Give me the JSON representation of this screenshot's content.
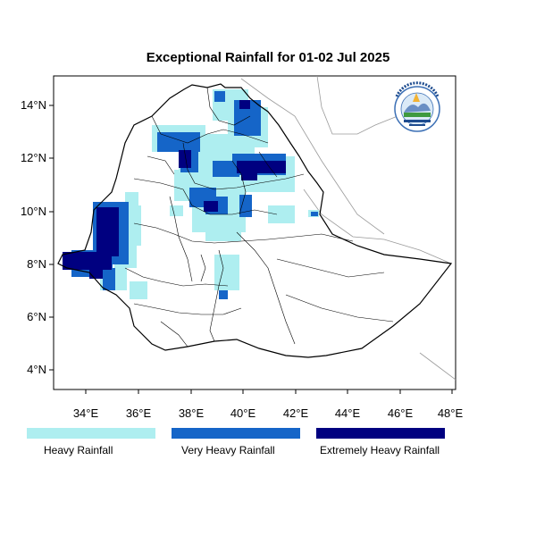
{
  "title": "Exceptional Rainfall for 01-02 Jul 2025",
  "axes": {
    "x_ticks": [
      "34°E",
      "36°E",
      "38°E",
      "40°E",
      "42°E",
      "44°E",
      "46°E",
      "48°E"
    ],
    "y_ticks": [
      "14°N",
      "12°N",
      "10°N",
      "8°N",
      "6°N",
      "4°N"
    ]
  },
  "legend": [
    {
      "label": "Heavy Rainfall",
      "color": "#aeeef0"
    },
    {
      "label": "Very Heavy Rainfall",
      "color": "#1565c8"
    },
    {
      "label": "Extremely Heavy Rainfall",
      "color": "#000080"
    }
  ],
  "colors": {
    "heavy": "#aeeef0",
    "very_heavy": "#1565c8",
    "extreme": "#000080",
    "border": "#000000",
    "neighbor_border": "#9a9a9a"
  },
  "logo_icon": "ethiopian-meteorology-institute-logo-icon"
}
